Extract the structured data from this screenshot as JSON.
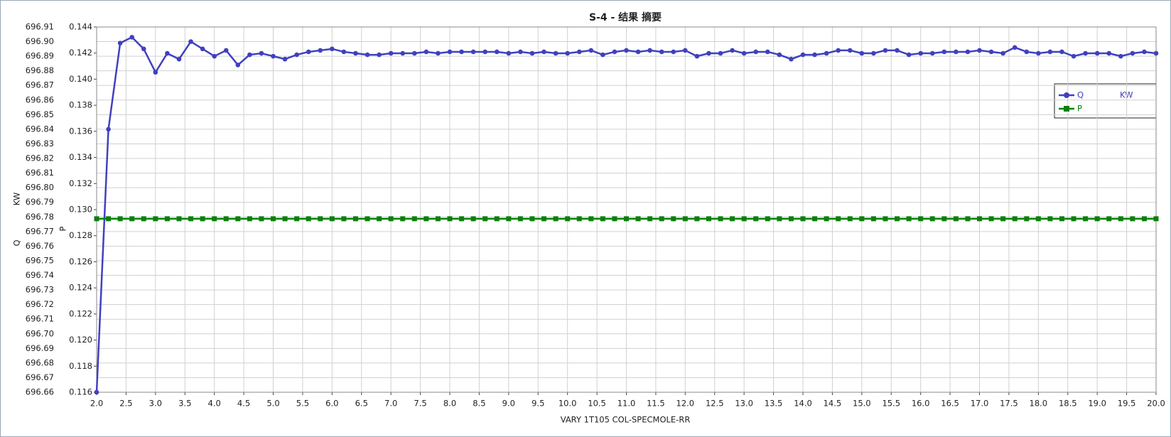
{
  "chart_data": {
    "type": "line",
    "title": "S-4 - 结果 摘要",
    "xlabel": "VARY   1T105    COL-SPECMOLE-RR",
    "ylabel": "Q",
    "yunit": "KW",
    "y2label": "P",
    "grid": true,
    "legend": "upper right",
    "xlim": [
      2.0,
      20.0
    ],
    "xticks": [
      {
        "value": 2,
        "label": "2.0"
      },
      {
        "value": 2.5,
        "label": "2.5"
      },
      {
        "value": 3,
        "label": "3.0"
      },
      {
        "value": 3.5,
        "label": "3.5"
      },
      {
        "value": 4,
        "label": "4.0"
      },
      {
        "value": 4.5,
        "label": "4.5"
      },
      {
        "value": 5,
        "label": "5.0"
      },
      {
        "value": 5.5,
        "label": "5.5"
      },
      {
        "value": 6,
        "label": "6.0"
      },
      {
        "value": 6.5,
        "label": "6.5"
      },
      {
        "value": 7,
        "label": "7.0"
      },
      {
        "value": 7.5,
        "label": "7.5"
      },
      {
        "value": 8,
        "label": "8.0"
      },
      {
        "value": 8.5,
        "label": "8.5"
      },
      {
        "value": 9,
        "label": "9.0"
      },
      {
        "value": 9.5,
        "label": "9.5"
      },
      {
        "value": 10,
        "label": "10.0"
      },
      {
        "value": 10.5,
        "label": "10.5"
      },
      {
        "value": 11,
        "label": "11.0"
      },
      {
        "value": 11.5,
        "label": "11.5"
      },
      {
        "value": 12,
        "label": "12.0"
      },
      {
        "value": 12.5,
        "label": "12.5"
      },
      {
        "value": 13,
        "label": "13.0"
      },
      {
        "value": 13.5,
        "label": "13.5"
      },
      {
        "value": 14,
        "label": "14.0"
      },
      {
        "value": 14.5,
        "label": "14.5"
      },
      {
        "value": 15,
        "label": "15.0"
      },
      {
        "value": 15.5,
        "label": "15.5"
      },
      {
        "value": 16,
        "label": "16.0"
      },
      {
        "value": 16.5,
        "label": "16.5"
      },
      {
        "value": 17,
        "label": "17.0"
      },
      {
        "value": 17.5,
        "label": "17.5"
      },
      {
        "value": 18,
        "label": "18.0"
      },
      {
        "value": 18.5,
        "label": "18.5"
      },
      {
        "value": 19,
        "label": "19.0"
      },
      {
        "value": 19.5,
        "label": "19.5"
      },
      {
        "value": 20,
        "label": "20.0"
      }
    ],
    "ylim": [
      696.66,
      696.91
    ],
    "yticks": [
      {
        "value": 696.66,
        "label": "696.66"
      },
      {
        "value": 696.67,
        "label": "696.67"
      },
      {
        "value": 696.68,
        "label": "696.68"
      },
      {
        "value": 696.69,
        "label": "696.69"
      },
      {
        "value": 696.7,
        "label": "696.70"
      },
      {
        "value": 696.71,
        "label": "696.71"
      },
      {
        "value": 696.72,
        "label": "696.72"
      },
      {
        "value": 696.73,
        "label": "696.73"
      },
      {
        "value": 696.74,
        "label": "696.74"
      },
      {
        "value": 696.75,
        "label": "696.75"
      },
      {
        "value": 696.76,
        "label": "696.76"
      },
      {
        "value": 696.77,
        "label": "696.77"
      },
      {
        "value": 696.78,
        "label": "696.78"
      },
      {
        "value": 696.79,
        "label": "696.79"
      },
      {
        "value": 696.8,
        "label": "696.80"
      },
      {
        "value": 696.81,
        "label": "696.81"
      },
      {
        "value": 696.82,
        "label": "696.82"
      },
      {
        "value": 696.83,
        "label": "696.83"
      },
      {
        "value": 696.84,
        "label": "696.84"
      },
      {
        "value": 696.85,
        "label": "696.85"
      },
      {
        "value": 696.86,
        "label": "696.86"
      },
      {
        "value": 696.87,
        "label": "696.87"
      },
      {
        "value": 696.88,
        "label": "696.88"
      },
      {
        "value": 696.89,
        "label": "696.89"
      },
      {
        "value": 696.9,
        "label": "696.90"
      },
      {
        "value": 696.91,
        "label": "696.91"
      }
    ],
    "y2lim": [
      0.116,
      0.144
    ],
    "y2ticks": [
      {
        "value": 0.116,
        "label": "0.116"
      },
      {
        "value": 0.118,
        "label": "0.118"
      },
      {
        "value": 0.12,
        "label": "0.120"
      },
      {
        "value": 0.122,
        "label": "0.122"
      },
      {
        "value": 0.124,
        "label": "0.124"
      },
      {
        "value": 0.126,
        "label": "0.126"
      },
      {
        "value": 0.128,
        "label": "0.128"
      },
      {
        "value": 0.13,
        "label": "0.130"
      },
      {
        "value": 0.132,
        "label": "0.132"
      },
      {
        "value": 0.134,
        "label": "0.134"
      },
      {
        "value": 0.136,
        "label": "0.136"
      },
      {
        "value": 0.138,
        "label": "0.138"
      },
      {
        "value": 0.14,
        "label": "0.140"
      },
      {
        "value": 0.142,
        "label": "0.142"
      },
      {
        "value": 0.144,
        "label": "0.144"
      }
    ],
    "x": [
      2,
      2.2,
      2.4,
      2.6,
      2.8,
      3,
      3.2,
      3.4,
      3.6,
      3.8,
      4,
      4.2,
      4.4,
      4.6,
      4.8,
      5,
      5.2,
      5.4,
      5.6,
      5.8,
      6,
      6.2,
      6.4,
      6.6,
      6.8,
      7,
      7.2,
      7.4,
      7.6,
      7.8,
      8,
      8.2,
      8.4,
      8.6,
      8.8,
      9,
      9.2,
      9.4,
      9.6,
      9.8,
      10,
      10.2,
      10.4,
      10.6,
      10.8,
      11,
      11.2,
      11.4,
      11.6,
      11.8,
      12,
      12.2,
      12.4,
      12.6,
      12.8,
      13,
      13.2,
      13.4,
      13.6,
      13.8,
      14,
      14.2,
      14.4,
      14.6,
      14.8,
      15,
      15.2,
      15.4,
      15.6,
      15.8,
      16,
      16.2,
      16.4,
      16.6,
      16.8,
      17,
      17.2,
      17.4,
      17.6,
      17.8,
      18,
      18.2,
      18.4,
      18.6,
      18.8,
      19,
      19.2,
      19.4,
      19.6,
      19.8,
      20
    ],
    "series": [
      {
        "name": "Q",
        "color": "#4040c0",
        "marker": "circle",
        "values": [
          696.66,
          696.84,
          696.899,
          696.903,
          696.895,
          696.879,
          696.892,
          696.888,
          696.9,
          696.895,
          696.89,
          696.894,
          696.884,
          696.891,
          696.892,
          696.89,
          696.888,
          696.891,
          696.893,
          696.894,
          696.895,
          696.893,
          696.892,
          696.891,
          696.891,
          696.892,
          696.892,
          696.892,
          696.893,
          696.892,
          696.893,
          696.893,
          696.893,
          696.893,
          696.893,
          696.892,
          696.893,
          696.892,
          696.893,
          696.892,
          696.892,
          696.893,
          696.894,
          696.891,
          696.893,
          696.894,
          696.893,
          696.894,
          696.893,
          696.893,
          696.894,
          696.89,
          696.892,
          696.892,
          696.894,
          696.892,
          696.893,
          696.893,
          696.891,
          696.888,
          696.891,
          696.891,
          696.892,
          696.894,
          696.894,
          696.892,
          696.892,
          696.894,
          696.894,
          696.891,
          696.892,
          696.892,
          696.893,
          696.893,
          696.893,
          696.894,
          696.893,
          696.892,
          696.896,
          696.893,
          696.892,
          696.893,
          696.893,
          696.89,
          696.892,
          696.892,
          696.892,
          696.89,
          696.892,
          696.893,
          696.892
        ]
      },
      {
        "name": "P",
        "color": "#0a800a",
        "marker": "square",
        "axis": "y2",
        "values": [
          0.1293,
          0.1293,
          0.1293,
          0.1293,
          0.1293,
          0.1293,
          0.1293,
          0.1293,
          0.1293,
          0.1293,
          0.1293,
          0.1293,
          0.1293,
          0.1293,
          0.1293,
          0.1293,
          0.1293,
          0.1293,
          0.1293,
          0.1293,
          0.1293,
          0.1293,
          0.1293,
          0.1293,
          0.1293,
          0.1293,
          0.1293,
          0.1293,
          0.1293,
          0.1293,
          0.1293,
          0.1293,
          0.1293,
          0.1293,
          0.1293,
          0.1293,
          0.1293,
          0.1293,
          0.1293,
          0.1293,
          0.1293,
          0.1293,
          0.1293,
          0.1293,
          0.1293,
          0.1293,
          0.1293,
          0.1293,
          0.1293,
          0.1293,
          0.1293,
          0.1293,
          0.1293,
          0.1293,
          0.1293,
          0.1293,
          0.1293,
          0.1293,
          0.1293,
          0.1293,
          0.1293,
          0.1293,
          0.1293,
          0.1293,
          0.1293,
          0.1293,
          0.1293,
          0.1293,
          0.1293,
          0.1293,
          0.1293,
          0.1293,
          0.1293,
          0.1293,
          0.1293,
          0.1293,
          0.1293,
          0.1293,
          0.1293,
          0.1293,
          0.1293,
          0.1293,
          0.1293,
          0.1293,
          0.1293,
          0.1293,
          0.1293,
          0.1293,
          0.1293,
          0.1293,
          0.1293
        ]
      }
    ]
  }
}
